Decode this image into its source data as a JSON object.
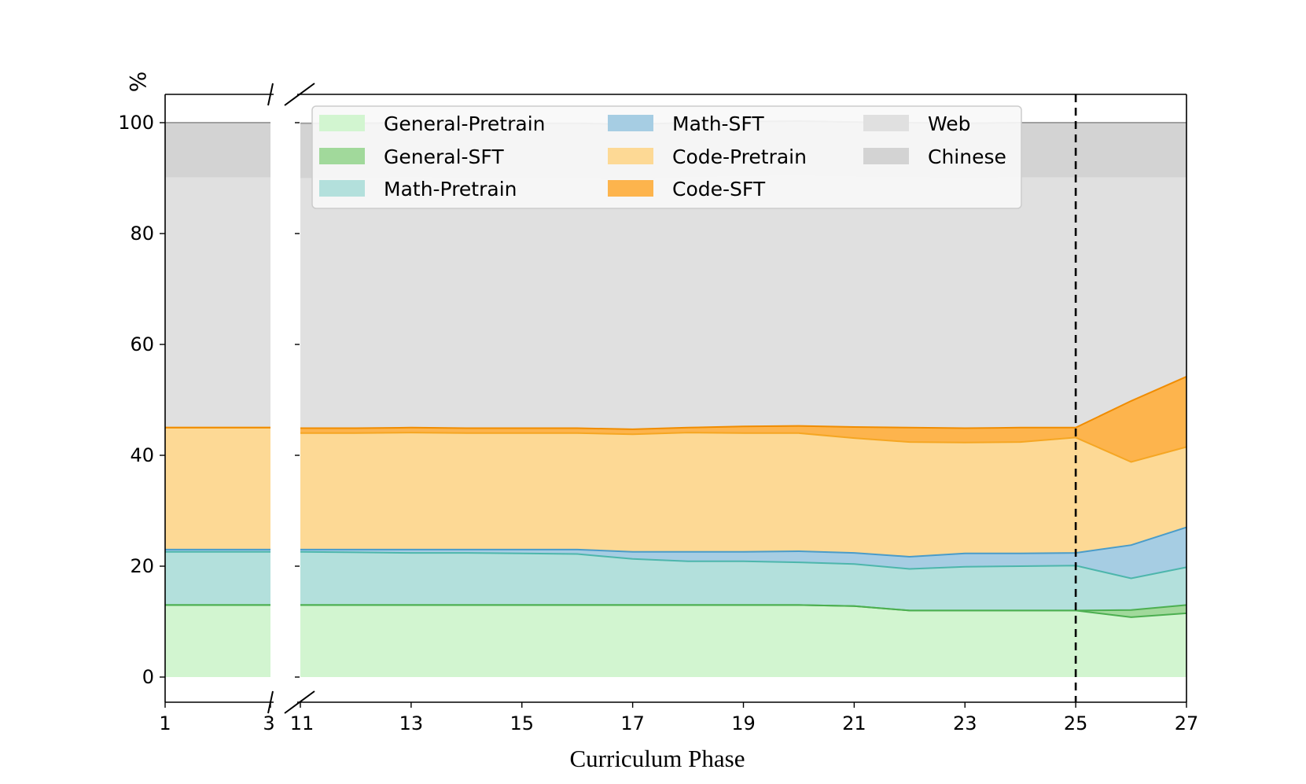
{
  "chart_data": {
    "type": "area",
    "title": "",
    "xlabel": "Curriculum Phase",
    "ylabel": "%",
    "ylim": [
      0,
      105
    ],
    "grid": false,
    "legend_position": "top",
    "broken_x_axis": true,
    "x_segments": [
      [
        1,
        3
      ],
      [
        11,
        27
      ]
    ],
    "x_ticks": [
      1,
      3,
      11,
      13,
      15,
      17,
      19,
      21,
      23,
      25,
      27
    ],
    "y_ticks": [
      0,
      20,
      40,
      60,
      80,
      100
    ],
    "vline": {
      "x": 25,
      "style": "dashed"
    },
    "x": [
      1,
      3,
      11,
      12,
      13,
      14,
      15,
      16,
      17,
      18,
      19,
      20,
      21,
      22,
      23,
      24,
      25,
      26,
      27
    ],
    "series": [
      {
        "name": "General-Pretrain",
        "color": "#d2f5d0",
        "edge": "#4caf50",
        "values": [
          13,
          13,
          13,
          13,
          13,
          13,
          13,
          13,
          13,
          13,
          13,
          13,
          12.8,
          12,
          12,
          12,
          12,
          10.8,
          11.5
        ]
      },
      {
        "name": "General-SFT",
        "color": "#a1d99b",
        "edge": "#4caf50",
        "values": [
          0,
          0,
          0,
          0,
          0,
          0,
          0,
          0,
          0,
          0,
          0,
          0,
          0,
          0,
          0,
          0,
          0,
          1.3,
          1.5
        ]
      },
      {
        "name": "Math-Pretrain",
        "color": "#b3e0dc",
        "edge": "#4db6ac",
        "values": [
          9.6,
          9.6,
          9.6,
          9.5,
          9.4,
          9.4,
          9.3,
          9.2,
          8.3,
          7.9,
          7.9,
          7.7,
          7.6,
          7.5,
          7.9,
          8.0,
          8.1,
          5.7,
          6.8
        ]
      },
      {
        "name": "Math-SFT",
        "color": "#a6cde3",
        "edge": "#4a9cc9",
        "values": [
          0.4,
          0.4,
          0.4,
          0.5,
          0.6,
          0.6,
          0.7,
          0.8,
          1.3,
          1.7,
          1.7,
          2.0,
          2.0,
          2.2,
          2.4,
          2.3,
          2.3,
          6.0,
          7.2
        ]
      },
      {
        "name": "Code-Pretrain",
        "color": "#fdd995",
        "edge": "#f5a623",
        "values": [
          22,
          22,
          21,
          21,
          21.1,
          21,
          21,
          21,
          21.2,
          21.5,
          21.4,
          21.3,
          20.7,
          20.7,
          20.0,
          20.1,
          20.8,
          15.0,
          14.5
        ]
      },
      {
        "name": "Code-SFT",
        "color": "#fdb44d",
        "edge": "#f08c00",
        "values": [
          0,
          0,
          0.9,
          0.9,
          0.9,
          0.9,
          0.9,
          0.9,
          0.9,
          0.9,
          1.2,
          1.3,
          2.0,
          2.6,
          2.6,
          2.6,
          1.8,
          11.0,
          12.7
        ]
      },
      {
        "name": "Web",
        "color": "#e0e0e0",
        "edge": "#e0e0e0",
        "values": [
          45,
          45,
          45,
          45,
          45,
          45,
          45,
          45,
          45,
          45,
          45,
          45,
          45,
          45,
          45,
          45,
          45,
          40.2,
          35.8
        ]
      },
      {
        "name": "Chinese",
        "color": "#d3d3d3",
        "edge": "#a0a0a0",
        "values": [
          10,
          10,
          10,
          10,
          10,
          10,
          10,
          10,
          10,
          10,
          10,
          10,
          10,
          10,
          10,
          10,
          10,
          10,
          10
        ]
      }
    ]
  }
}
